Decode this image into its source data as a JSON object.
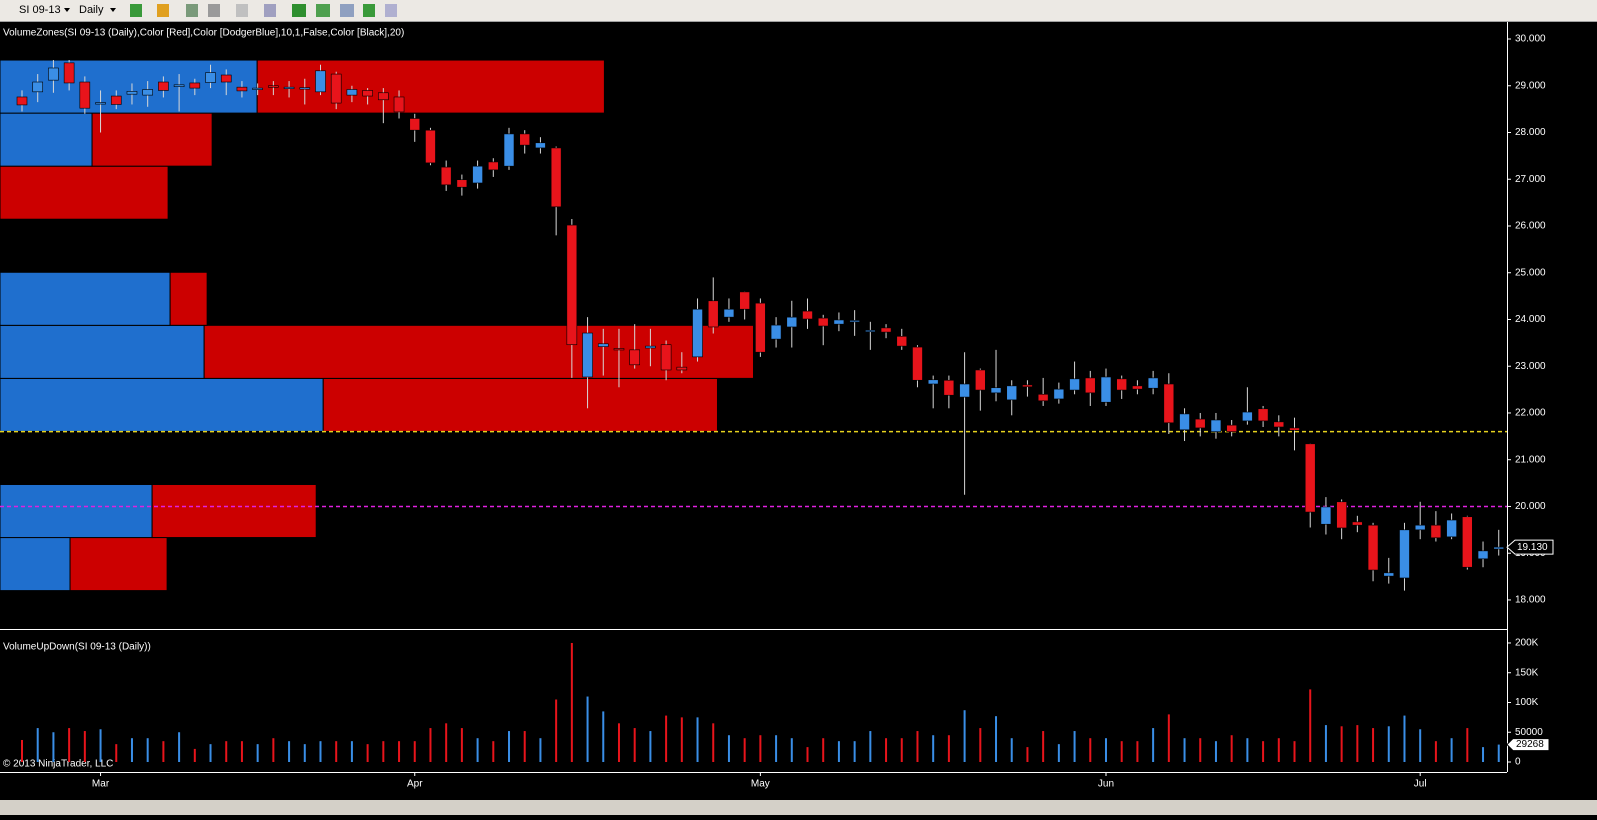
{
  "toolbar": {
    "symbol": "SI 09-13",
    "interval": "Daily"
  },
  "copyright": "© 2013 NinjaTrader, LLC",
  "chart_data": [
    {
      "type": "candlestick",
      "title": "VolumeZones(SI 09-13 (Daily),Color [Red],Color [DodgerBlue],10,1,False,Color [Black],20)",
      "categories": [
        null,
        null,
        null,
        null,
        null,
        "Mar",
        null,
        null,
        null,
        null,
        null,
        null,
        null,
        null,
        null,
        null,
        null,
        null,
        null,
        null,
        null,
        null,
        null,
        null,
        null,
        "Apr",
        null,
        null,
        null,
        null,
        null,
        null,
        null,
        null,
        null,
        null,
        null,
        null,
        null,
        null,
        null,
        null,
        null,
        null,
        null,
        null,
        null,
        "May",
        null,
        null,
        null,
        null,
        null,
        null,
        null,
        null,
        null,
        null,
        null,
        null,
        null,
        null,
        null,
        null,
        null,
        null,
        null,
        null,
        null,
        "Jun",
        null,
        null,
        null,
        null,
        null,
        null,
        null,
        null,
        null,
        null,
        null,
        null,
        null,
        null,
        null,
        null,
        null,
        null,
        null,
        "Jul",
        null,
        null,
        null,
        null,
        null
      ],
      "open": [
        28.76,
        28.87,
        29.12,
        29.49,
        29.08,
        28.62,
        28.78,
        28.82,
        28.8,
        29.08,
        28.98,
        29.06,
        29.07,
        29.23,
        28.97,
        28.92,
        29.0,
        28.95,
        28.93,
        28.87,
        29.25,
        28.8,
        28.9,
        28.85,
        28.76,
        28.3,
        28.05,
        27.26,
        26.99,
        26.92,
        27.37,
        27.28,
        27.97,
        27.67,
        27.67,
        26.02,
        22.77,
        23.42,
        23.38,
        23.35,
        23.39,
        23.46,
        22.98,
        23.2,
        24.4,
        24.05,
        24.59,
        24.35,
        23.58,
        23.84,
        24.18,
        24.03,
        23.9,
        23.97,
        23.75,
        23.82,
        23.64,
        23.41,
        22.62,
        22.7,
        22.34,
        22.92,
        22.43,
        22.28,
        22.6,
        22.4,
        22.3,
        22.49,
        22.75,
        22.23,
        22.73,
        22.58,
        22.53,
        22.62,
        21.64,
        21.87,
        21.6,
        21.74,
        21.83,
        22.09,
        21.81,
        21.68,
        21.34,
        19.62,
        20.1,
        19.67,
        19.6,
        18.51,
        18.47,
        19.5,
        19.6,
        19.35,
        19.78,
        18.88,
        19.09
      ],
      "high": [
        28.9,
        29.25,
        29.55,
        29.55,
        29.2,
        28.9,
        28.9,
        29.05,
        29.1,
        29.2,
        29.25,
        29.15,
        29.45,
        29.35,
        29.1,
        29.05,
        29.1,
        29.1,
        29.15,
        29.45,
        29.3,
        29.0,
        28.95,
        28.95,
        28.9,
        28.4,
        28.1,
        27.4,
        27.1,
        27.4,
        27.45,
        28.1,
        28.05,
        27.9,
        27.7,
        26.15,
        24.05,
        23.8,
        23.8,
        23.9,
        23.8,
        23.55,
        23.3,
        24.45,
        24.9,
        24.45,
        24.6,
        24.45,
        24.05,
        24.4,
        24.45,
        24.1,
        24.15,
        24.2,
        23.95,
        23.9,
        23.8,
        23.45,
        22.8,
        22.8,
        23.3,
        22.95,
        23.35,
        22.7,
        22.7,
        22.75,
        22.65,
        23.1,
        22.9,
        22.95,
        22.8,
        22.7,
        22.9,
        22.85,
        22.1,
        22.0,
        22.0,
        21.85,
        22.55,
        22.15,
        21.95,
        21.9,
        21.35,
        20.2,
        20.15,
        19.8,
        19.65,
        18.9,
        19.65,
        20.1,
        19.9,
        19.85,
        19.8,
        19.25,
        19.5
      ],
      "low": [
        28.45,
        28.65,
        28.85,
        28.9,
        28.4,
        28.0,
        28.5,
        28.6,
        28.55,
        28.75,
        28.45,
        28.8,
        28.95,
        28.8,
        28.75,
        28.8,
        28.8,
        28.75,
        28.6,
        28.8,
        28.5,
        28.65,
        28.6,
        28.2,
        28.3,
        27.8,
        27.3,
        26.75,
        26.65,
        26.8,
        27.05,
        27.2,
        27.55,
        27.55,
        25.8,
        22.75,
        22.1,
        22.8,
        22.55,
        22.95,
        23.0,
        22.7,
        22.85,
        23.1,
        23.7,
        23.95,
        24.0,
        23.2,
        23.4,
        23.4,
        23.8,
        23.45,
        23.75,
        23.65,
        23.35,
        23.6,
        23.35,
        22.55,
        22.1,
        22.1,
        20.25,
        22.05,
        22.25,
        21.95,
        22.35,
        22.15,
        22.2,
        22.4,
        22.15,
        22.15,
        22.3,
        22.4,
        22.4,
        21.55,
        21.4,
        21.5,
        21.45,
        21.5,
        21.75,
        21.7,
        21.5,
        21.2,
        19.55,
        19.4,
        19.3,
        19.45,
        18.4,
        18.35,
        18.2,
        19.3,
        19.25,
        19.3,
        18.65,
        18.7,
        18.95
      ],
      "close": [
        28.59,
        29.08,
        29.38,
        29.06,
        28.52,
        28.64,
        28.6,
        28.88,
        28.92,
        28.9,
        29.02,
        28.95,
        29.28,
        29.08,
        28.89,
        28.95,
        28.98,
        28.97,
        28.96,
        29.32,
        28.63,
        28.92,
        28.78,
        28.7,
        28.44,
        28.05,
        27.35,
        26.88,
        26.83,
        27.28,
        27.2,
        27.97,
        27.73,
        27.78,
        26.41,
        23.46,
        23.71,
        23.48,
        23.36,
        23.03,
        23.43,
        22.92,
        22.92,
        24.22,
        23.84,
        24.22,
        24.22,
        23.3,
        23.88,
        24.05,
        24.01,
        23.86,
        23.99,
        23.98,
        23.77,
        23.73,
        23.43,
        22.7,
        22.71,
        22.38,
        22.62,
        22.49,
        22.54,
        22.58,
        22.56,
        22.26,
        22.51,
        22.73,
        22.43,
        22.77,
        22.49,
        22.51,
        22.75,
        21.79,
        21.98,
        21.68,
        21.85,
        21.6,
        22.02,
        21.83,
        21.7,
        21.63,
        19.88,
        19.99,
        19.54,
        19.6,
        18.64,
        18.58,
        19.5,
        19.6,
        19.33,
        19.71,
        18.7,
        19.05,
        19.13
      ],
      "up_color": "#3a8ee6",
      "down_color": "#e8141b",
      "ylim": [
        17.4,
        30.364
      ],
      "yticks": [
        {
          "value": 18,
          "label": "18.000"
        },
        {
          "value": 19,
          "label": "19.000"
        },
        {
          "value": 20,
          "label": "20.000"
        },
        {
          "value": 21,
          "label": "21.000"
        },
        {
          "value": 22,
          "label": "22.000"
        },
        {
          "value": 23,
          "label": "23.000"
        },
        {
          "value": 24,
          "label": "24.000"
        },
        {
          "value": 25,
          "label": "25.000"
        },
        {
          "value": 26,
          "label": "26.000"
        },
        {
          "value": 27,
          "label": "27.000"
        },
        {
          "value": 28,
          "label": "28.000"
        },
        {
          "value": 29,
          "label": "29.000"
        },
        {
          "value": 30,
          "label": "30.000"
        }
      ],
      "last_value": {
        "value": 19.13,
        "label": "19.130"
      },
      "zones": [
        {
          "up": 350000,
          "down": 485000
        },
        {
          "up": 760000,
          "down": 820000
        },
        {
          "up": 0,
          "down": 0
        },
        {
          "up": 1615000,
          "down": 1970000
        },
        {
          "up": 1020000,
          "down": 2745000
        },
        {
          "up": 850000,
          "down": 185000
        },
        {
          "up": 0,
          "down": 0
        },
        {
          "up": 0,
          "down": 840000
        },
        {
          "up": 460000,
          "down": 600000
        },
        {
          "up": 1285000,
          "down": 1735000
        }
      ],
      "zone_up_color": "#1f6fce",
      "zone_down_color": "#cc0000",
      "reference_lines": [
        {
          "value": 21.6,
          "color": "#e6d21e"
        },
        {
          "value": 20,
          "color": "#e020e0"
        }
      ]
    },
    {
      "type": "bar",
      "title": "VolumeUpDown(SI 09-13 (Daily))",
      "values": [
        37000,
        57000,
        50000,
        57000,
        52000,
        55000,
        30000,
        40000,
        40000,
        35000,
        50000,
        22000,
        30000,
        35000,
        35000,
        30000,
        40000,
        35000,
        30000,
        35000,
        35000,
        35000,
        30000,
        35000,
        35000,
        35000,
        57000,
        65000,
        57000,
        40000,
        35000,
        52000,
        52000,
        40000,
        105000,
        200000,
        110000,
        85000,
        65000,
        57000,
        52000,
        78000,
        75000,
        75000,
        65000,
        45000,
        40000,
        45000,
        45000,
        40000,
        25000,
        40000,
        35000,
        35000,
        52000,
        40000,
        40000,
        52000,
        45000,
        45000,
        87000,
        57000,
        77000,
        40000,
        25000,
        52000,
        30000,
        52000,
        40000,
        40000,
        35000,
        35000,
        57000,
        80000,
        40000,
        40000,
        35000,
        45000,
        40000,
        35000,
        40000,
        35000,
        122000,
        62000,
        60000,
        62000,
        57000,
        60000,
        78000,
        55000,
        35000,
        40000,
        57000,
        25000,
        29268
      ],
      "ylim": [
        -16800,
        221800
      ],
      "yticks": [
        0,
        50000,
        {
          "value": 100000,
          "label": "100K"
        },
        {
          "value": 150000,
          "label": "150K"
        },
        {
          "value": 200000,
          "label": "200K"
        }
      ],
      "last_value": 29268
    }
  ]
}
